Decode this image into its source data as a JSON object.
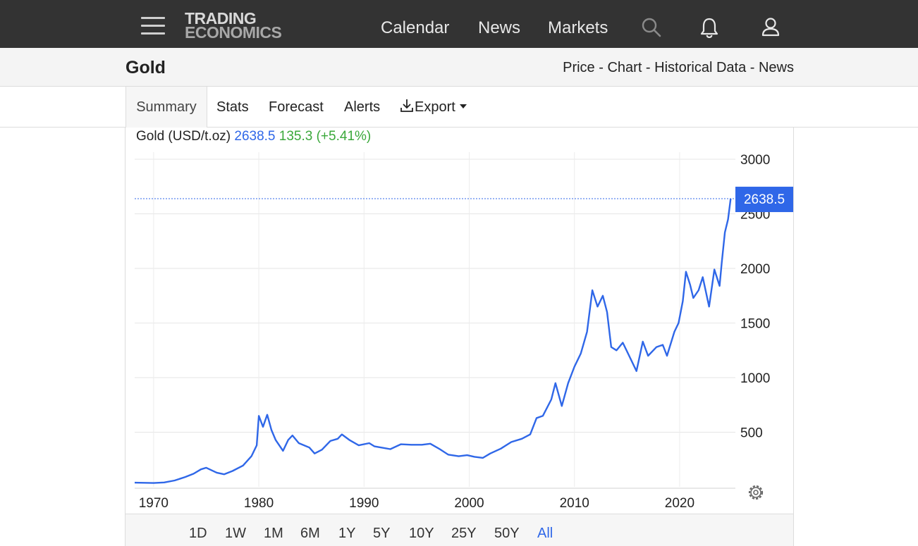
{
  "header": {
    "logo_line1": "TRADING",
    "logo_line2": "ECONOMICS",
    "nav": [
      "Calendar",
      "News",
      "Markets"
    ],
    "icons": [
      "menu-icon",
      "search-icon",
      "bell-icon",
      "user-icon"
    ]
  },
  "page": {
    "title": "Gold",
    "subnav": [
      "Price",
      "Chart",
      "Historical Data",
      "News"
    ],
    "subnav_sep": " - "
  },
  "tabs": {
    "summary": "Summary",
    "stats": "Stats",
    "forecast": "Forecast",
    "alerts": "Alerts",
    "export": "Export"
  },
  "ranges": {
    "items": [
      "1D",
      "1W",
      "1M",
      "6M",
      "1Y",
      "5Y",
      "10Y",
      "25Y",
      "50Y",
      "All"
    ],
    "active": "All"
  },
  "chart_data": {
    "type": "line",
    "instrument": "Gold (USD/t.oz)",
    "last_price": "2638.5",
    "change": "135.3",
    "change_pct": "(+5.41%)",
    "x_ticks": [
      "1970",
      "1980",
      "1990",
      "2000",
      "2010",
      "2020"
    ],
    "y_ticks": [
      "500",
      "1000",
      "1500",
      "2000",
      "2500",
      "3000"
    ],
    "ylim": [
      0,
      3000
    ],
    "xlim": [
      1968.2,
      2025.3
    ],
    "grid": true,
    "colors": {
      "line": "#2f67e8",
      "last_label_bg": "#2f67e8",
      "change": "#3aa83a"
    },
    "series": [
      {
        "points": [
          [
            1968.2,
            38
          ],
          [
            1970.0,
            35
          ],
          [
            1971.0,
            40
          ],
          [
            1972.0,
            58
          ],
          [
            1973.0,
            90
          ],
          [
            1973.8,
            120
          ],
          [
            1974.5,
            160
          ],
          [
            1975.0,
            175
          ],
          [
            1976.0,
            130
          ],
          [
            1976.7,
            115
          ],
          [
            1977.5,
            145
          ],
          [
            1978.5,
            195
          ],
          [
            1979.3,
            280
          ],
          [
            1979.8,
            380
          ],
          [
            1980.0,
            650
          ],
          [
            1980.4,
            550
          ],
          [
            1980.8,
            660
          ],
          [
            1981.2,
            520
          ],
          [
            1981.6,
            430
          ],
          [
            1982.3,
            330
          ],
          [
            1982.8,
            430
          ],
          [
            1983.2,
            470
          ],
          [
            1983.8,
            400
          ],
          [
            1984.8,
            360
          ],
          [
            1985.3,
            305
          ],
          [
            1986.0,
            340
          ],
          [
            1986.8,
            420
          ],
          [
            1987.5,
            440
          ],
          [
            1987.9,
            480
          ],
          [
            1988.6,
            430
          ],
          [
            1989.5,
            380
          ],
          [
            1990.5,
            400
          ],
          [
            1991.0,
            370
          ],
          [
            1992.5,
            345
          ],
          [
            1993.5,
            390
          ],
          [
            1994.5,
            385
          ],
          [
            1995.5,
            385
          ],
          [
            1996.3,
            395
          ],
          [
            1997.2,
            345
          ],
          [
            1998.0,
            295
          ],
          [
            1999.0,
            280
          ],
          [
            1999.8,
            290
          ],
          [
            2000.5,
            275
          ],
          [
            2001.3,
            265
          ],
          [
            2002.0,
            305
          ],
          [
            2003.0,
            350
          ],
          [
            2004.0,
            410
          ],
          [
            2005.0,
            440
          ],
          [
            2005.8,
            480
          ],
          [
            2006.4,
            630
          ],
          [
            2007.0,
            650
          ],
          [
            2007.8,
            800
          ],
          [
            2008.2,
            950
          ],
          [
            2008.8,
            740
          ],
          [
            2009.4,
            950
          ],
          [
            2010.0,
            1100
          ],
          [
            2010.6,
            1220
          ],
          [
            2011.2,
            1420
          ],
          [
            2011.7,
            1800
          ],
          [
            2012.2,
            1650
          ],
          [
            2012.7,
            1750
          ],
          [
            2013.1,
            1600
          ],
          [
            2013.5,
            1280
          ],
          [
            2014.0,
            1250
          ],
          [
            2014.6,
            1320
          ],
          [
            2015.3,
            1180
          ],
          [
            2015.9,
            1060
          ],
          [
            2016.5,
            1330
          ],
          [
            2017.0,
            1200
          ],
          [
            2017.8,
            1280
          ],
          [
            2018.4,
            1300
          ],
          [
            2018.8,
            1200
          ],
          [
            2019.5,
            1420
          ],
          [
            2019.9,
            1500
          ],
          [
            2020.3,
            1700
          ],
          [
            2020.6,
            1970
          ],
          [
            2021.0,
            1850
          ],
          [
            2021.3,
            1730
          ],
          [
            2021.8,
            1800
          ],
          [
            2022.2,
            1920
          ],
          [
            2022.8,
            1650
          ],
          [
            2023.3,
            1990
          ],
          [
            2023.8,
            1840
          ],
          [
            2024.0,
            2050
          ],
          [
            2024.3,
            2330
          ],
          [
            2024.6,
            2450
          ],
          [
            2024.85,
            2638.5
          ]
        ]
      }
    ]
  }
}
